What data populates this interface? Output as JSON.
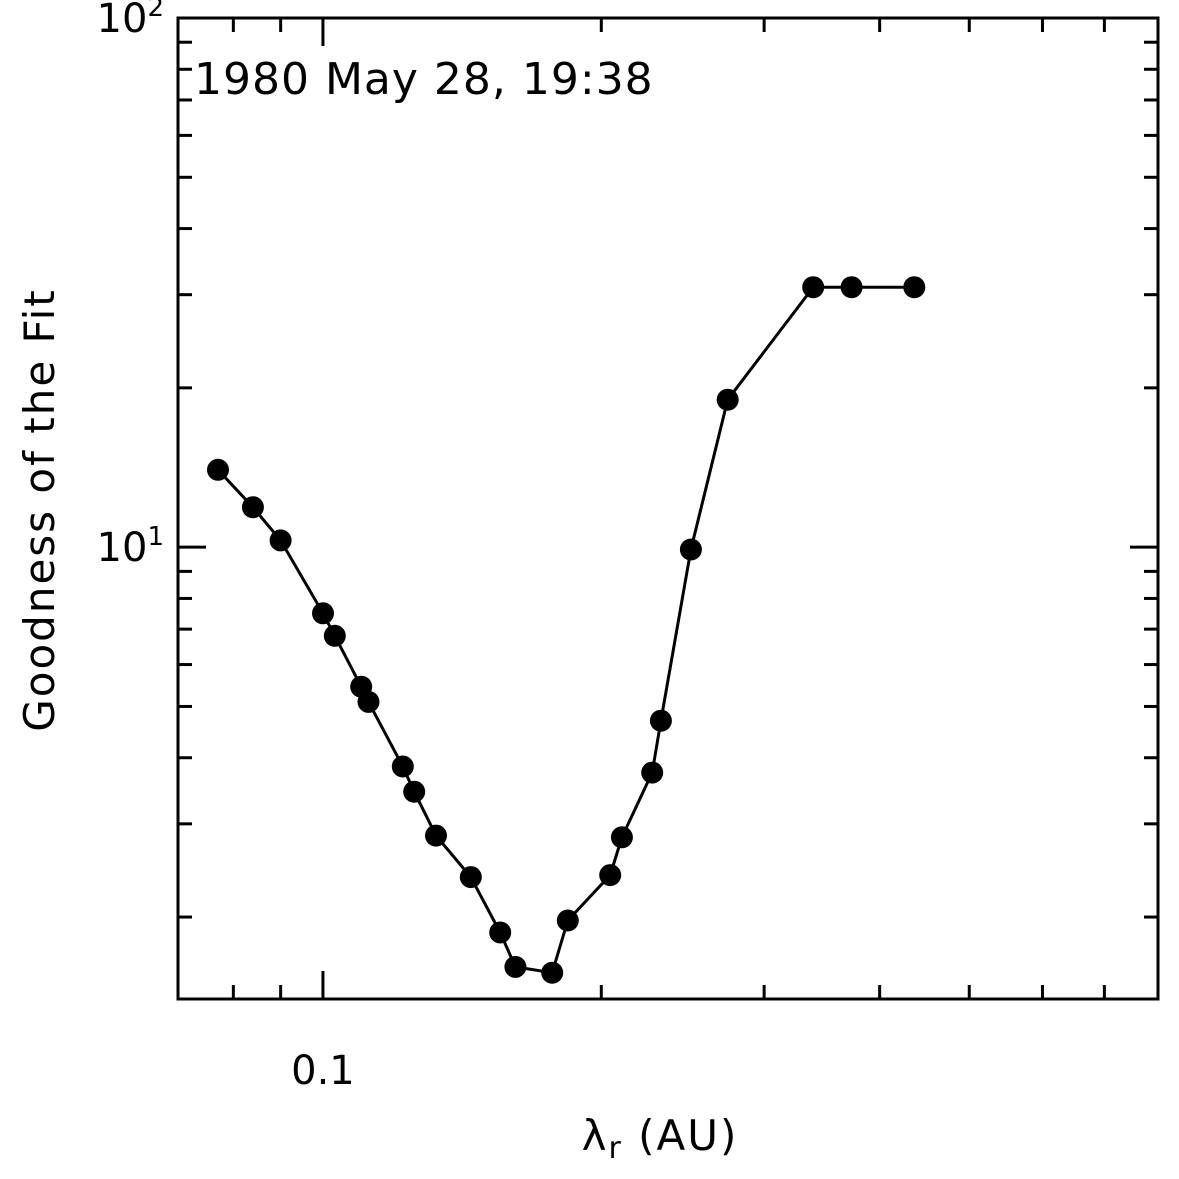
{
  "chart_data": {
    "type": "line",
    "annotation": "1980 May 28, 19:38",
    "xlabel_main": "λ",
    "xlabel_sub": "r",
    "xlabel_unit": " (AU)",
    "ylabel": "Goodness of the Fit",
    "x_scale": "log",
    "y_scale": "log",
    "xlim": [
      0.0697,
      0.8
    ],
    "ylim": [
      1.4,
      100
    ],
    "x_tick_labels": [
      {
        "value": 0.1,
        "label": "0.1"
      }
    ],
    "y_tick_labels": [
      {
        "value": 10,
        "base": "10",
        "exp": "1"
      },
      {
        "value": 100,
        "base": "10",
        "exp": "2"
      }
    ],
    "grid": false,
    "series": [
      {
        "marker": "filled-circle",
        "color": "#000000",
        "x": [
          0.077,
          0.084,
          0.09,
          0.1,
          0.103,
          0.11,
          0.112,
          0.122,
          0.1255,
          0.1325,
          0.1445,
          0.1555,
          0.1615,
          0.177,
          0.184,
          0.2045,
          0.2105,
          0.227,
          0.232,
          0.25,
          0.274,
          0.339,
          0.373,
          0.436
        ],
        "y": [
          14.0,
          11.9,
          10.3,
          7.5,
          6.8,
          5.45,
          5.1,
          3.85,
          3.45,
          2.85,
          2.38,
          1.87,
          1.61,
          1.57,
          1.97,
          2.4,
          2.83,
          3.75,
          4.7,
          9.9,
          19.0,
          31.0,
          31.0,
          31.0
        ]
      }
    ]
  }
}
